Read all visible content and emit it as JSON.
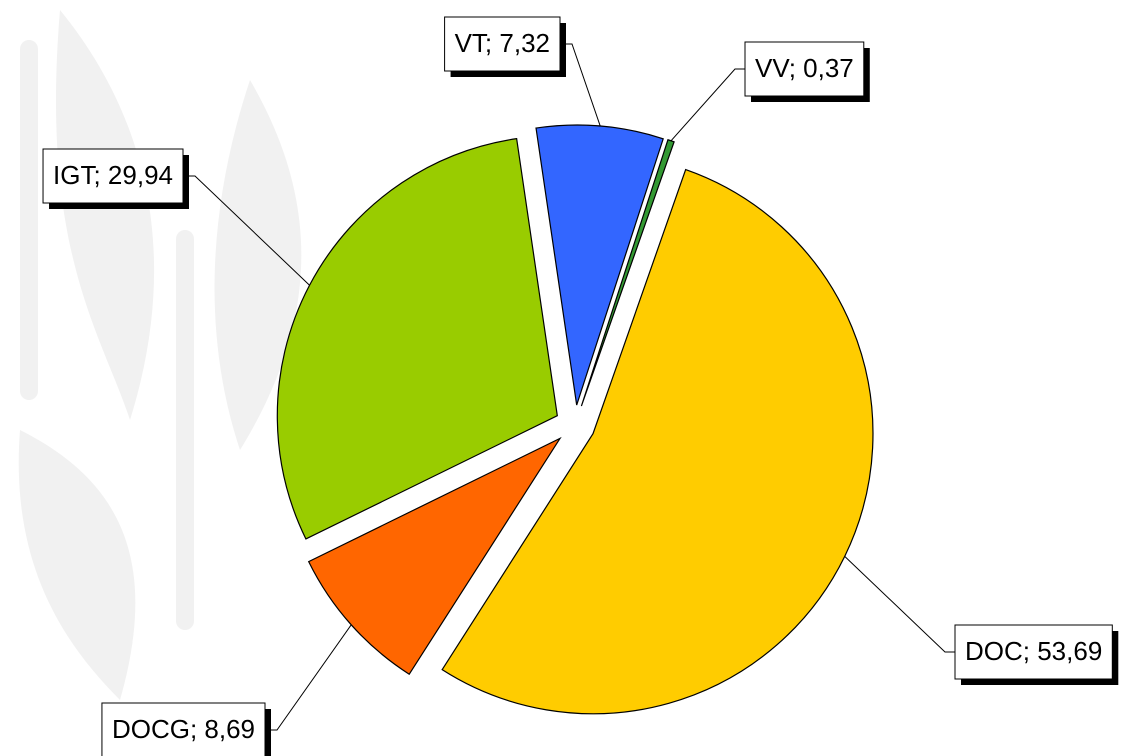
{
  "chart_data": {
    "type": "pie",
    "values": [
      0.37,
      53.69,
      8.69,
      29.94,
      7.32
    ],
    "value_labels": [
      "VV; 0,37",
      "DOC; 53,69",
      "DOCG; 8,69",
      "IGT; 29,94",
      "VT; 7,32"
    ],
    "colors": [
      "#339933",
      "#ffcc00",
      "#ff6600",
      "#99cc00",
      "#3366ff"
    ]
  }
}
